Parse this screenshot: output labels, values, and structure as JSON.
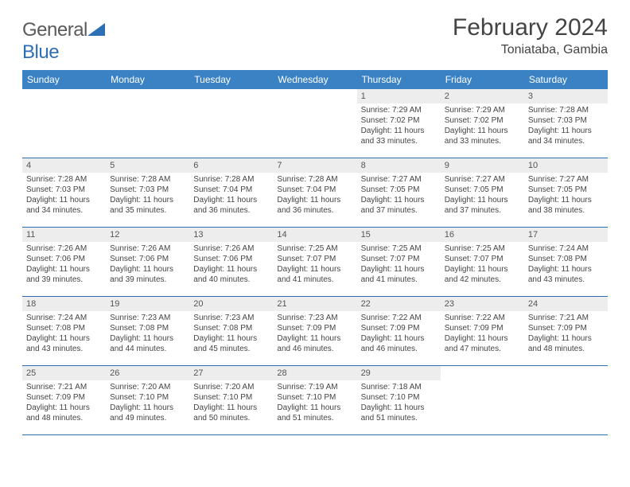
{
  "brand": {
    "part1": "General",
    "part2": "Blue"
  },
  "title": "February 2024",
  "location": "Toniataba, Gambia",
  "colors": {
    "header_bg": "#3b82c4",
    "header_text": "#ffffff",
    "daynum_bg": "#ededed",
    "border": "#2d6fb5",
    "body_text": "#444444"
  },
  "dayNames": [
    "Sunday",
    "Monday",
    "Tuesday",
    "Wednesday",
    "Thursday",
    "Friday",
    "Saturday"
  ],
  "weeks": [
    [
      {
        "empty": true
      },
      {
        "empty": true
      },
      {
        "empty": true
      },
      {
        "empty": true
      },
      {
        "day": "1",
        "sunrise": "Sunrise: 7:29 AM",
        "sunset": "Sunset: 7:02 PM",
        "daylight1": "Daylight: 11 hours",
        "daylight2": "and 33 minutes."
      },
      {
        "day": "2",
        "sunrise": "Sunrise: 7:29 AM",
        "sunset": "Sunset: 7:02 PM",
        "daylight1": "Daylight: 11 hours",
        "daylight2": "and 33 minutes."
      },
      {
        "day": "3",
        "sunrise": "Sunrise: 7:28 AM",
        "sunset": "Sunset: 7:03 PM",
        "daylight1": "Daylight: 11 hours",
        "daylight2": "and 34 minutes."
      }
    ],
    [
      {
        "day": "4",
        "sunrise": "Sunrise: 7:28 AM",
        "sunset": "Sunset: 7:03 PM",
        "daylight1": "Daylight: 11 hours",
        "daylight2": "and 34 minutes."
      },
      {
        "day": "5",
        "sunrise": "Sunrise: 7:28 AM",
        "sunset": "Sunset: 7:03 PM",
        "daylight1": "Daylight: 11 hours",
        "daylight2": "and 35 minutes."
      },
      {
        "day": "6",
        "sunrise": "Sunrise: 7:28 AM",
        "sunset": "Sunset: 7:04 PM",
        "daylight1": "Daylight: 11 hours",
        "daylight2": "and 36 minutes."
      },
      {
        "day": "7",
        "sunrise": "Sunrise: 7:28 AM",
        "sunset": "Sunset: 7:04 PM",
        "daylight1": "Daylight: 11 hours",
        "daylight2": "and 36 minutes."
      },
      {
        "day": "8",
        "sunrise": "Sunrise: 7:27 AM",
        "sunset": "Sunset: 7:05 PM",
        "daylight1": "Daylight: 11 hours",
        "daylight2": "and 37 minutes."
      },
      {
        "day": "9",
        "sunrise": "Sunrise: 7:27 AM",
        "sunset": "Sunset: 7:05 PM",
        "daylight1": "Daylight: 11 hours",
        "daylight2": "and 37 minutes."
      },
      {
        "day": "10",
        "sunrise": "Sunrise: 7:27 AM",
        "sunset": "Sunset: 7:05 PM",
        "daylight1": "Daylight: 11 hours",
        "daylight2": "and 38 minutes."
      }
    ],
    [
      {
        "day": "11",
        "sunrise": "Sunrise: 7:26 AM",
        "sunset": "Sunset: 7:06 PM",
        "daylight1": "Daylight: 11 hours",
        "daylight2": "and 39 minutes."
      },
      {
        "day": "12",
        "sunrise": "Sunrise: 7:26 AM",
        "sunset": "Sunset: 7:06 PM",
        "daylight1": "Daylight: 11 hours",
        "daylight2": "and 39 minutes."
      },
      {
        "day": "13",
        "sunrise": "Sunrise: 7:26 AM",
        "sunset": "Sunset: 7:06 PM",
        "daylight1": "Daylight: 11 hours",
        "daylight2": "and 40 minutes."
      },
      {
        "day": "14",
        "sunrise": "Sunrise: 7:25 AM",
        "sunset": "Sunset: 7:07 PM",
        "daylight1": "Daylight: 11 hours",
        "daylight2": "and 41 minutes."
      },
      {
        "day": "15",
        "sunrise": "Sunrise: 7:25 AM",
        "sunset": "Sunset: 7:07 PM",
        "daylight1": "Daylight: 11 hours",
        "daylight2": "and 41 minutes."
      },
      {
        "day": "16",
        "sunrise": "Sunrise: 7:25 AM",
        "sunset": "Sunset: 7:07 PM",
        "daylight1": "Daylight: 11 hours",
        "daylight2": "and 42 minutes."
      },
      {
        "day": "17",
        "sunrise": "Sunrise: 7:24 AM",
        "sunset": "Sunset: 7:08 PM",
        "daylight1": "Daylight: 11 hours",
        "daylight2": "and 43 minutes."
      }
    ],
    [
      {
        "day": "18",
        "sunrise": "Sunrise: 7:24 AM",
        "sunset": "Sunset: 7:08 PM",
        "daylight1": "Daylight: 11 hours",
        "daylight2": "and 43 minutes."
      },
      {
        "day": "19",
        "sunrise": "Sunrise: 7:23 AM",
        "sunset": "Sunset: 7:08 PM",
        "daylight1": "Daylight: 11 hours",
        "daylight2": "and 44 minutes."
      },
      {
        "day": "20",
        "sunrise": "Sunrise: 7:23 AM",
        "sunset": "Sunset: 7:08 PM",
        "daylight1": "Daylight: 11 hours",
        "daylight2": "and 45 minutes."
      },
      {
        "day": "21",
        "sunrise": "Sunrise: 7:23 AM",
        "sunset": "Sunset: 7:09 PM",
        "daylight1": "Daylight: 11 hours",
        "daylight2": "and 46 minutes."
      },
      {
        "day": "22",
        "sunrise": "Sunrise: 7:22 AM",
        "sunset": "Sunset: 7:09 PM",
        "daylight1": "Daylight: 11 hours",
        "daylight2": "and 46 minutes."
      },
      {
        "day": "23",
        "sunrise": "Sunrise: 7:22 AM",
        "sunset": "Sunset: 7:09 PM",
        "daylight1": "Daylight: 11 hours",
        "daylight2": "and 47 minutes."
      },
      {
        "day": "24",
        "sunrise": "Sunrise: 7:21 AM",
        "sunset": "Sunset: 7:09 PM",
        "daylight1": "Daylight: 11 hours",
        "daylight2": "and 48 minutes."
      }
    ],
    [
      {
        "day": "25",
        "sunrise": "Sunrise: 7:21 AM",
        "sunset": "Sunset: 7:09 PM",
        "daylight1": "Daylight: 11 hours",
        "daylight2": "and 48 minutes."
      },
      {
        "day": "26",
        "sunrise": "Sunrise: 7:20 AM",
        "sunset": "Sunset: 7:10 PM",
        "daylight1": "Daylight: 11 hours",
        "daylight2": "and 49 minutes."
      },
      {
        "day": "27",
        "sunrise": "Sunrise: 7:20 AM",
        "sunset": "Sunset: 7:10 PM",
        "daylight1": "Daylight: 11 hours",
        "daylight2": "and 50 minutes."
      },
      {
        "day": "28",
        "sunrise": "Sunrise: 7:19 AM",
        "sunset": "Sunset: 7:10 PM",
        "daylight1": "Daylight: 11 hours",
        "daylight2": "and 51 minutes."
      },
      {
        "day": "29",
        "sunrise": "Sunrise: 7:18 AM",
        "sunset": "Sunset: 7:10 PM",
        "daylight1": "Daylight: 11 hours",
        "daylight2": "and 51 minutes."
      },
      {
        "empty": true
      },
      {
        "empty": true
      }
    ]
  ]
}
